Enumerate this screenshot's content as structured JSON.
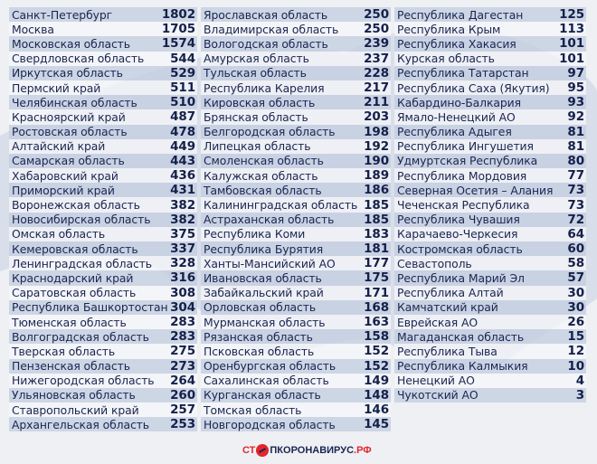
{
  "columns": [
    [
      [
        "Санкт-Петербург",
        "1802"
      ],
      [
        "Москва",
        "1705"
      ],
      [
        "Московская область",
        "1574"
      ],
      [
        "Свердловская область",
        "544"
      ],
      [
        "Иркутская область",
        "529"
      ],
      [
        "Пермский край",
        "511"
      ],
      [
        "Челябинская область",
        "510"
      ],
      [
        "Красноярский край",
        "487"
      ],
      [
        "Ростовская область",
        "478"
      ],
      [
        "Алтайский край",
        "449"
      ],
      [
        "Самарская область",
        "443"
      ],
      [
        "Хабаровский край",
        "436"
      ],
      [
        "Приморский край",
        "431"
      ],
      [
        "Воронежская область",
        "382"
      ],
      [
        "Новосибирская область",
        "382"
      ],
      [
        "Омская область",
        "375"
      ],
      [
        "Кемеровская область",
        "337"
      ],
      [
        "Ленинградская область",
        "328"
      ],
      [
        "Краснодарский край",
        "316"
      ],
      [
        "Саратовская область",
        "308"
      ],
      [
        "Республика Башкортостан",
        "304"
      ],
      [
        "Тюменская область",
        "283"
      ],
      [
        "Волгоградская область",
        "283"
      ],
      [
        "Тверская область",
        "275"
      ],
      [
        "Пензенская область",
        "273"
      ],
      [
        "Нижегородская область",
        "264"
      ],
      [
        "Ульяновская область",
        "260"
      ],
      [
        "Ставропольский край",
        "257"
      ],
      [
        "Архангельская область",
        "253"
      ]
    ],
    [
      [
        "Ярославская область",
        "250"
      ],
      [
        "Владимирская область",
        "250"
      ],
      [
        "Вологодская область",
        "239"
      ],
      [
        "Амурская область",
        "237"
      ],
      [
        "Тульская область",
        "228"
      ],
      [
        "Республика Карелия",
        "217"
      ],
      [
        "Кировская область",
        "211"
      ],
      [
        "Брянская область",
        "203"
      ],
      [
        "Белгородская область",
        "198"
      ],
      [
        "Липецкая область",
        "192"
      ],
      [
        "Смоленская область",
        "190"
      ],
      [
        "Калужская область",
        "189"
      ],
      [
        "Тамбовская область",
        "186"
      ],
      [
        "Калининградская область",
        "185"
      ],
      [
        "Астраханская область",
        "185"
      ],
      [
        "Республика Коми",
        "183"
      ],
      [
        "Республика Бурятия",
        "181"
      ],
      [
        "Ханты-Мансийский АО",
        "177"
      ],
      [
        "Ивановская область",
        "175"
      ],
      [
        "Забайкальский край",
        "171"
      ],
      [
        "Орловская область",
        "168"
      ],
      [
        "Мурманская область",
        "163"
      ],
      [
        "Рязанская область",
        "158"
      ],
      [
        "Псковская область",
        "152"
      ],
      [
        "Оренбургская область",
        "152"
      ],
      [
        "Сахалинская область",
        "149"
      ],
      [
        "Курганская область",
        "148"
      ],
      [
        "Томская область",
        "146"
      ],
      [
        "Новгородская область",
        "145"
      ]
    ],
    [
      [
        "Республика Дагестан",
        "125"
      ],
      [
        "Республика Крым",
        "113"
      ],
      [
        "Республика Хакасия",
        "101"
      ],
      [
        "Курская область",
        "101"
      ],
      [
        "Республика Татарстан",
        "97"
      ],
      [
        "Республика Саха (Якутия)",
        "95"
      ],
      [
        "Кабардино-Балкария",
        "93"
      ],
      [
        "Ямало-Ненецкий АО",
        "92"
      ],
      [
        "Республика Адыгея",
        "81"
      ],
      [
        "Республика Ингушетия",
        "81"
      ],
      [
        "Удмуртская Республика",
        "80"
      ],
      [
        "Республика Мордовия",
        "77"
      ],
      [
        "Северная Осетия – Алания",
        "73"
      ],
      [
        "Чеченская Республика",
        "73"
      ],
      [
        "Республика Чувашия",
        "72"
      ],
      [
        "Карачаево-Черкесия",
        "64"
      ],
      [
        "Костромская область",
        "60"
      ],
      [
        "Севастополь",
        "58"
      ],
      [
        "Республика Марий Эл",
        "57"
      ],
      [
        "Республика Алтай",
        "30"
      ],
      [
        "Камчатский край",
        "30"
      ],
      [
        "Еврейская АО",
        "26"
      ],
      [
        "Магаданская область",
        "15"
      ],
      [
        "Республика Тыва",
        "12"
      ],
      [
        "Республика Калмыкия",
        "10"
      ],
      [
        "Ненецкий АО",
        "4"
      ],
      [
        "Чукотский АО",
        "3"
      ]
    ]
  ],
  "logo": {
    "part1": "СТ",
    "part2": "ПКОРОНАВИРУС",
    "part3": ".РФ"
  },
  "colors": {
    "text": "#1b2550",
    "accent": "#e3262c",
    "row_shaded": "#c4cee0",
    "background": "#eef0f4"
  }
}
